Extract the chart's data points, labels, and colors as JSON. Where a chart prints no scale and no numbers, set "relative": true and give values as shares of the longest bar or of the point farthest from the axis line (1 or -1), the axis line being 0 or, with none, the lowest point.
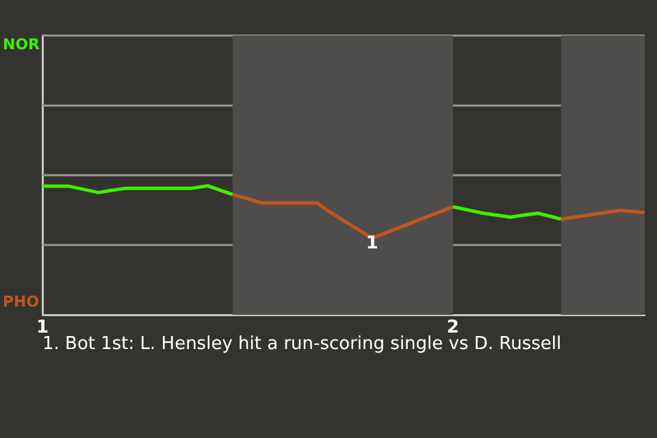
{
  "chart_data": {
    "type": "line",
    "relative": true,
    "xlim": [
      1,
      2.467
    ],
    "xticks": [
      1,
      2
    ],
    "series": [
      {
        "color": "#3cf000",
        "x": [
          1,
          1.063,
          1.137,
          1.157,
          1.203,
          1.363,
          1.403,
          1.463,
          null,
          2,
          2.073,
          2.14,
          2.207,
          2.263
        ],
        "values": [
          0.998,
          0.998,
          0.948,
          0.959,
          0.981,
          0.981,
          1,
          0.933,
          null,
          0.838,
          0.788,
          0.758,
          0.788,
          0.742
        ]
      },
      {
        "color": "#c0561e",
        "x": [
          1.463,
          1.537,
          1.67,
          1.697,
          1.803,
          2,
          null,
          2.263,
          2.34,
          2.407,
          2.467
        ],
        "values": [
          0.933,
          0.866,
          0.866,
          0.803,
          0.595,
          0.838,
          null,
          0.742,
          0.779,
          0.81,
          0.792
        ]
      }
    ],
    "bands": [
      {
        "axis": "x",
        "from": 1.463,
        "to": 2,
        "color": "#4f4d4b"
      },
      {
        "axis": "x",
        "from": 2.263,
        "to": 2.467,
        "color": "#4f4d4b"
      }
    ],
    "ref_lines": [
      {
        "axis": "y",
        "value": 0.541,
        "color": "#9a9895"
      },
      {
        "axis": "y",
        "value": 1.082,
        "color": "#9a9895"
      },
      {
        "axis": "y",
        "value": 1.623,
        "color": "#9a9895"
      },
      {
        "axis": "y",
        "value": 2.165,
        "color": "#9a9895"
      }
    ],
    "marker": "none",
    "line_style": "solid",
    "annotations": [
      "NOR",
      "PHO",
      {
        "text": "1",
        "x": 1.803,
        "y": 0.595
      },
      "1. Bot 1st: L. Hensley hit a run-scoring single vs D. Russell"
    ]
  }
}
